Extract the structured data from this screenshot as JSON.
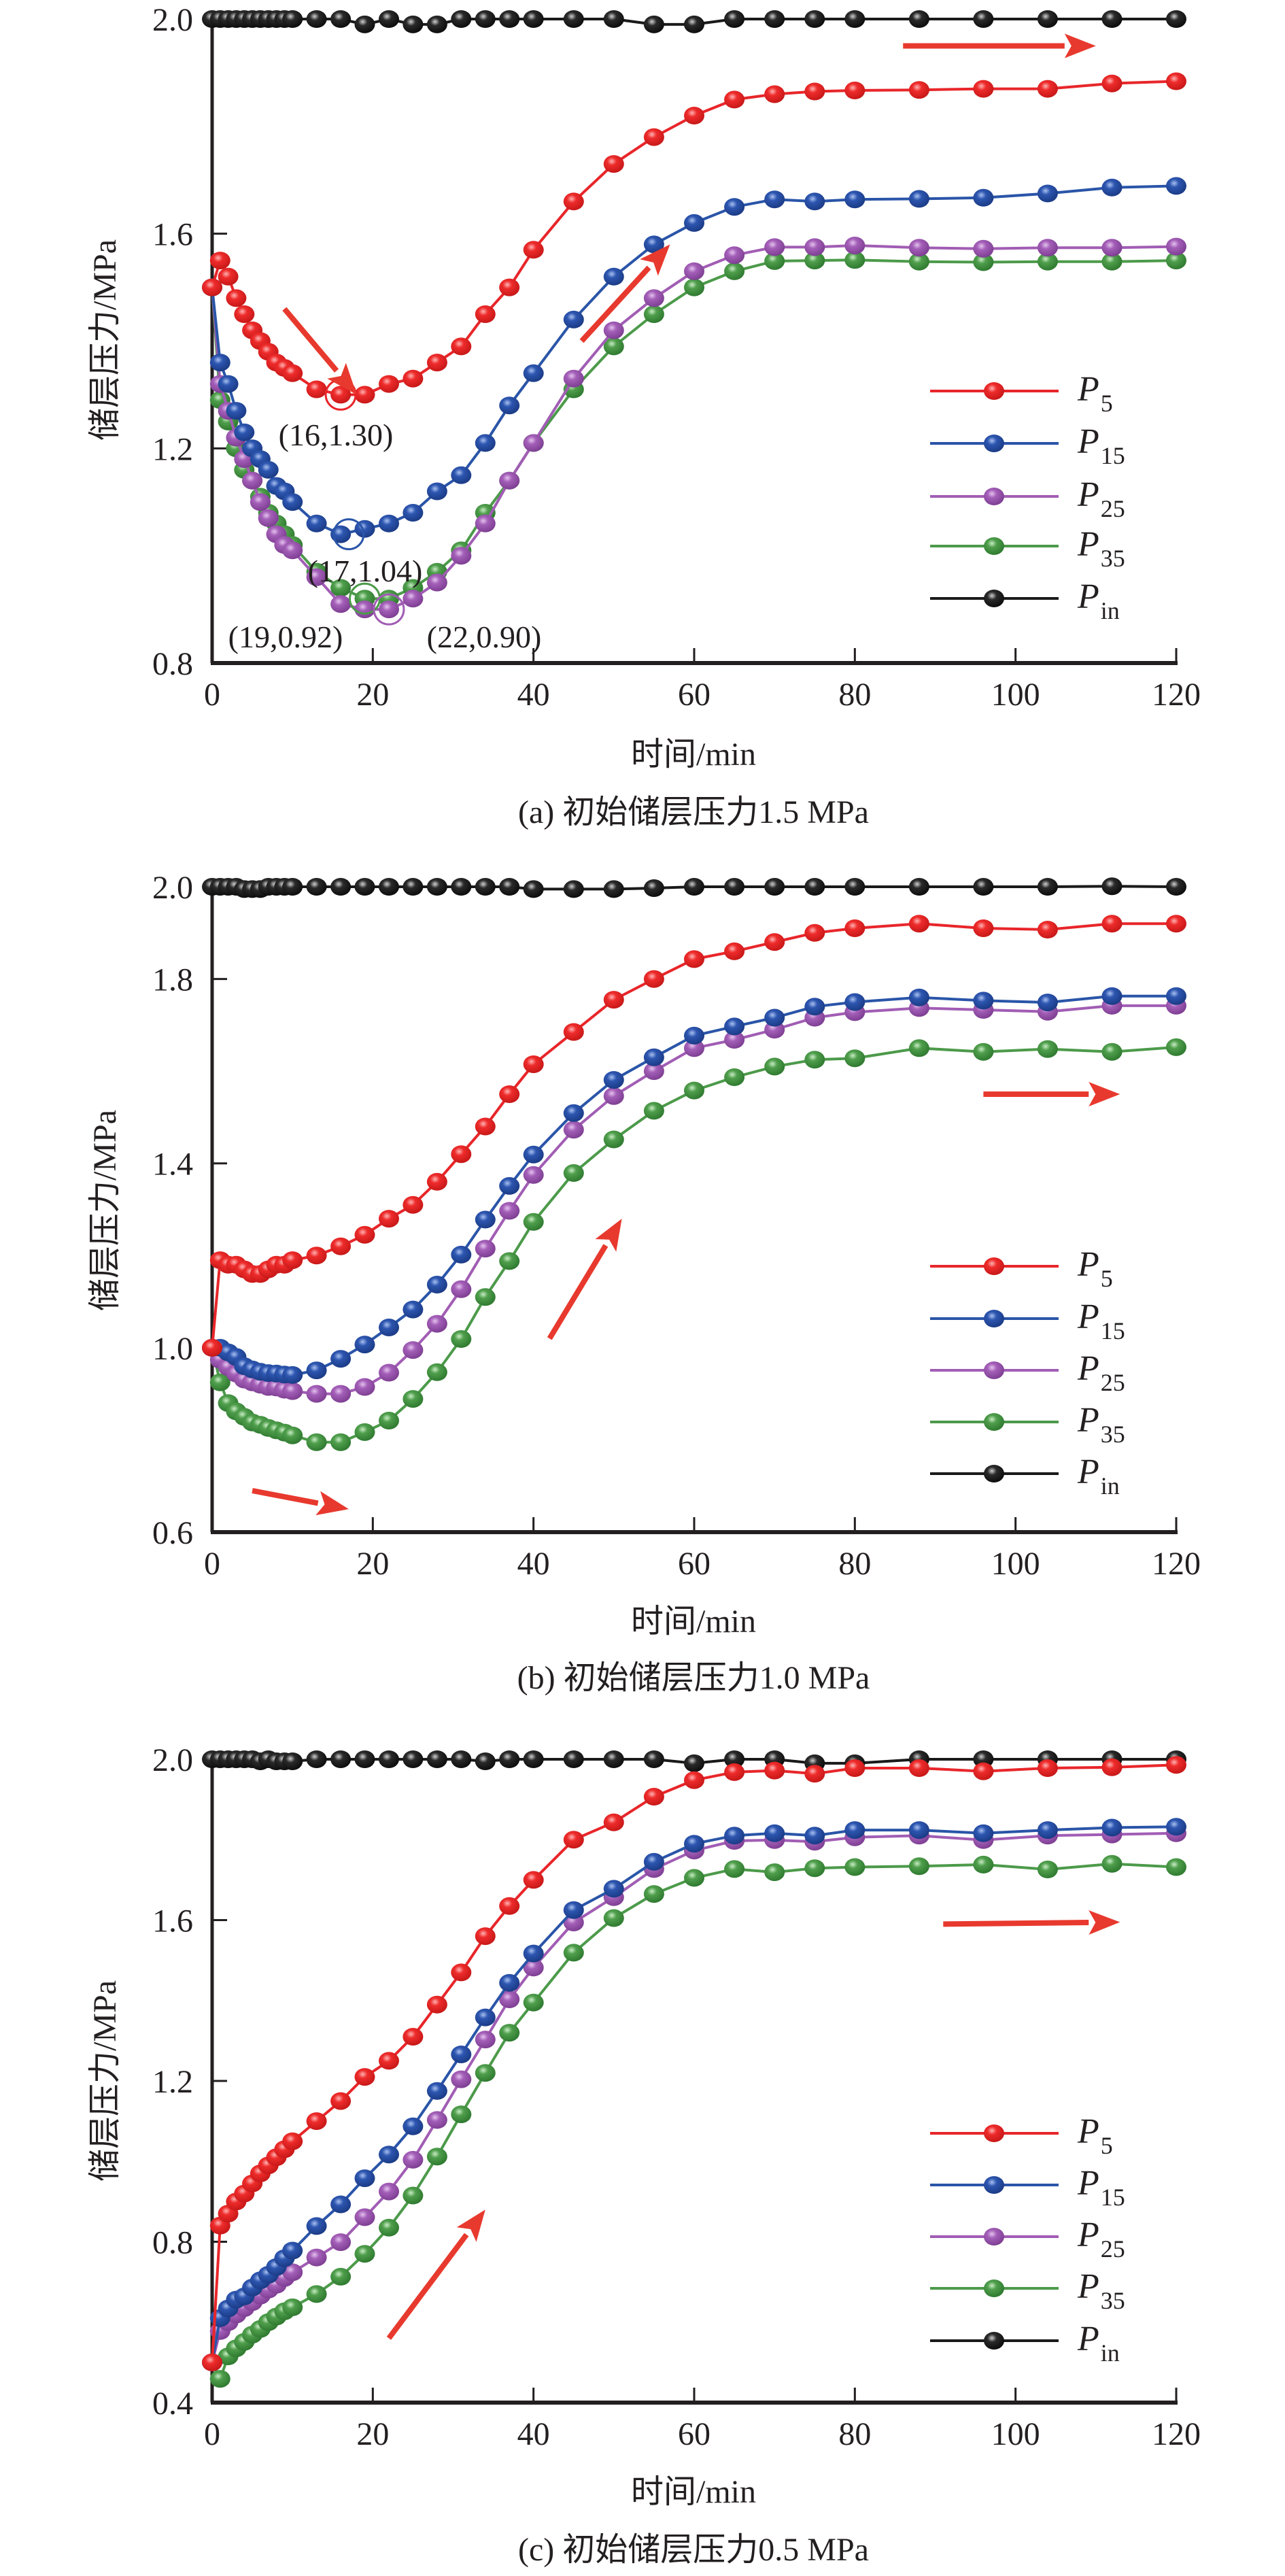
{
  "figure": {
    "colors": {
      "P5": "#e8262a",
      "P15": "#2a55a8",
      "P25": "#a15db4",
      "P35": "#4c9a4a",
      "Pin": "#1a1a1a",
      "arrow": "#e8392e",
      "axis": "#231f20"
    }
  },
  "chart_data": [
    {
      "id": "a",
      "type": "line",
      "title": "(a) 初始储层压力1.5 MPa",
      "xlabel": "时间/min",
      "ylabel": "储层压力/MPa",
      "xlim": [
        0,
        120
      ],
      "ylim": [
        0.8,
        2.0
      ],
      "xticks": [
        0,
        20,
        40,
        60,
        80,
        100,
        120
      ],
      "xtick_labels": [
        "0",
        "20",
        "40",
        "60",
        "80",
        "100",
        "120"
      ],
      "yticks": [
        0.8,
        1.2,
        1.6,
        2.0
      ],
      "ytick_labels": [
        "0.8",
        "1.2",
        "1.6",
        "2.0"
      ],
      "grid": false,
      "legend_position": "lower-right",
      "x": [
        0,
        1,
        2,
        3,
        4,
        5,
        6,
        7,
        8,
        9,
        10,
        13,
        16,
        19,
        22,
        25,
        28,
        31,
        34,
        37,
        40,
        45,
        50,
        55,
        60,
        65,
        70,
        75,
        80,
        88,
        96,
        104,
        112,
        120
      ],
      "series": [
        {
          "name": "P5",
          "label_main": "P",
          "label_sub": "5",
          "values": [
            1.5,
            1.55,
            1.52,
            1.48,
            1.45,
            1.42,
            1.4,
            1.38,
            1.36,
            1.35,
            1.34,
            1.31,
            1.3,
            1.3,
            1.32,
            1.33,
            1.36,
            1.39,
            1.45,
            1.5,
            1.57,
            1.66,
            1.73,
            1.78,
            1.82,
            1.85,
            1.86,
            1.865,
            1.867,
            1.868,
            1.87,
            1.87,
            1.88,
            1.884
          ]
        },
        {
          "name": "P15",
          "label_main": "P",
          "label_sub": "15",
          "values": [
            1.5,
            1.36,
            1.32,
            1.27,
            1.23,
            1.2,
            1.18,
            1.16,
            1.13,
            1.12,
            1.1,
            1.06,
            1.04,
            1.05,
            1.06,
            1.08,
            1.12,
            1.15,
            1.21,
            1.28,
            1.34,
            1.44,
            1.52,
            1.58,
            1.62,
            1.65,
            1.664,
            1.66,
            1.664,
            1.665,
            1.667,
            1.675,
            1.686,
            1.689
          ]
        },
        {
          "name": "P25",
          "label_main": "P",
          "label_sub": "25",
          "values": [
            1.5,
            1.32,
            1.27,
            1.22,
            1.18,
            1.14,
            1.1,
            1.07,
            1.04,
            1.02,
            1.01,
            0.96,
            0.91,
            0.9,
            0.9,
            0.92,
            0.95,
            1.0,
            1.06,
            1.14,
            1.21,
            1.33,
            1.42,
            1.48,
            1.53,
            1.56,
            1.575,
            1.575,
            1.578,
            1.574,
            1.572,
            1.574,
            1.574,
            1.576
          ]
        },
        {
          "name": "P35",
          "label_main": "P",
          "label_sub": "35",
          "values": [
            1.5,
            1.29,
            1.25,
            1.2,
            1.16,
            1.14,
            1.11,
            1.08,
            1.06,
            1.04,
            1.02,
            0.97,
            0.94,
            0.92,
            0.92,
            0.94,
            0.97,
            1.01,
            1.08,
            1.14,
            1.21,
            1.31,
            1.39,
            1.45,
            1.5,
            1.53,
            1.549,
            1.55,
            1.551,
            1.548,
            1.547,
            1.548,
            1.548,
            1.55
          ]
        },
        {
          "name": "Pin",
          "label_main": "P",
          "label_sub": "in",
          "values": [
            2.0,
            2.0,
            2.0,
            2.0,
            2.0,
            2.0,
            2.0,
            2.0,
            2.0,
            2.0,
            2.0,
            2.0,
            2.0,
            1.99,
            2.0,
            1.99,
            1.99,
            2.0,
            2.0,
            2.0,
            2.0,
            2.0,
            2.0,
            1.99,
            1.99,
            2.0,
            2.0,
            2.0,
            2.0,
            2.0,
            2.0,
            2.0,
            2.0,
            2.0
          ]
        }
      ],
      "annotations": [
        {
          "text": "(16,1.30)",
          "series": "P5",
          "x": 16,
          "y": 1.3
        },
        {
          "text": "(17,1.04)",
          "series": "P15",
          "x": 17,
          "y": 1.04
        },
        {
          "text": "(19,0.92)",
          "series": "P35",
          "x": 19,
          "y": 0.92
        },
        {
          "text": "(22,0.90)",
          "series": "P25",
          "x": 22,
          "y": 0.9
        }
      ],
      "arrows": [
        {
          "direction": "down-right",
          "from": [
            9,
            1.46
          ],
          "to": [
            18,
            1.3
          ]
        },
        {
          "direction": "up-right",
          "from": [
            46,
            1.4
          ],
          "to": [
            57,
            1.58
          ]
        },
        {
          "direction": "right",
          "from": [
            86,
            1.95
          ],
          "to": [
            110,
            1.95
          ]
        }
      ]
    },
    {
      "id": "b",
      "type": "line",
      "title": "(b) 初始储层压力1.0 MPa",
      "xlabel": "时间/min",
      "ylabel": "储层压力/MPa",
      "xlim": [
        0,
        120
      ],
      "ylim": [
        0.6,
        2.0
      ],
      "xticks": [
        0,
        20,
        40,
        60,
        80,
        100,
        120
      ],
      "xtick_labels": [
        "0",
        "20",
        "40",
        "60",
        "80",
        "100",
        "120"
      ],
      "yticks": [
        0.6,
        1.0,
        1.4,
        1.8,
        2.0
      ],
      "ytick_labels": [
        "0.6",
        "1.0",
        "1.4",
        "1.8",
        "2.0"
      ],
      "grid": false,
      "legend_position": "lower-right",
      "x": [
        0,
        1,
        2,
        3,
        4,
        5,
        6,
        7,
        8,
        9,
        10,
        13,
        16,
        19,
        22,
        25,
        28,
        31,
        34,
        37,
        40,
        45,
        50,
        55,
        60,
        65,
        70,
        75,
        80,
        88,
        96,
        104,
        112,
        120
      ],
      "series": [
        {
          "name": "P5",
          "label_main": "P",
          "label_sub": "5",
          "values": [
            1.0,
            1.19,
            1.18,
            1.18,
            1.17,
            1.16,
            1.16,
            1.17,
            1.18,
            1.18,
            1.19,
            1.2,
            1.22,
            1.245,
            1.28,
            1.31,
            1.36,
            1.42,
            1.48,
            1.55,
            1.615,
            1.685,
            1.755,
            1.8,
            1.843,
            1.86,
            1.88,
            1.9,
            1.91,
            1.92,
            1.91,
            1.907,
            1.92,
            1.92
          ]
        },
        {
          "name": "P15",
          "label_main": "P",
          "label_sub": "15",
          "values": [
            1.0,
            1.0,
            0.99,
            0.98,
            0.96,
            0.953,
            0.948,
            0.945,
            0.944,
            0.942,
            0.941,
            0.951,
            0.976,
            1.007,
            1.044,
            1.083,
            1.137,
            1.202,
            1.278,
            1.351,
            1.419,
            1.509,
            1.581,
            1.63,
            1.677,
            1.697,
            1.716,
            1.74,
            1.75,
            1.76,
            1.753,
            1.749,
            1.763,
            1.763
          ]
        },
        {
          "name": "P25",
          "label_main": "P",
          "label_sub": "25",
          "values": [
            1.0,
            0.974,
            0.958,
            0.944,
            0.931,
            0.925,
            0.92,
            0.915,
            0.914,
            0.909,
            0.906,
            0.9,
            0.9,
            0.915,
            0.946,
            0.995,
            1.052,
            1.127,
            1.215,
            1.297,
            1.375,
            1.473,
            1.546,
            1.6,
            1.65,
            1.668,
            1.69,
            1.716,
            1.728,
            1.737,
            1.733,
            1.729,
            1.742,
            1.742
          ]
        },
        {
          "name": "P35",
          "label_main": "P",
          "label_sub": "35",
          "values": [
            1.0,
            0.925,
            0.88,
            0.862,
            0.85,
            0.838,
            0.833,
            0.826,
            0.821,
            0.816,
            0.81,
            0.795,
            0.795,
            0.817,
            0.842,
            0.889,
            0.947,
            1.019,
            1.11,
            1.188,
            1.273,
            1.379,
            1.452,
            1.514,
            1.558,
            1.587,
            1.61,
            1.625,
            1.628,
            1.65,
            1.642,
            1.648,
            1.642,
            1.652
          ]
        },
        {
          "name": "Pin",
          "label_main": "P",
          "label_sub": "in",
          "values": [
            2.0,
            2.0,
            2.0,
            2.0,
            1.995,
            1.995,
            1.995,
            2.0,
            2.0,
            2.0,
            2.0,
            2.0,
            2.0,
            2.0,
            2.0,
            2.0,
            2.0,
            2.0,
            2.0,
            2.0,
            1.995,
            1.995,
            1.995,
            1.997,
            2.0,
            2.0,
            2.0,
            2.0,
            2.0,
            2.0,
            2.0,
            2.0,
            2.001,
            2.0
          ]
        }
      ],
      "annotations": [],
      "arrows": [
        {
          "direction": "down-right",
          "from": [
            5,
            0.69
          ],
          "to": [
            17,
            0.65
          ]
        },
        {
          "direction": "up-right",
          "from": [
            42,
            1.02
          ],
          "to": [
            51,
            1.28
          ]
        },
        {
          "direction": "right",
          "from": [
            96,
            1.55
          ],
          "to": [
            113,
            1.55
          ]
        }
      ]
    },
    {
      "id": "c",
      "type": "line",
      "title": "(c) 初始储层压力0.5 MPa",
      "xlabel": "时间/min",
      "ylabel": "储层压力/MPa",
      "xlim": [
        0,
        120
      ],
      "ylim": [
        0.4,
        2.0
      ],
      "xticks": [
        0,
        20,
        40,
        60,
        80,
        100,
        120
      ],
      "xtick_labels": [
        "0",
        "20",
        "40",
        "60",
        "80",
        "100",
        "120"
      ],
      "yticks": [
        0.4,
        0.8,
        1.2,
        1.6,
        2.0
      ],
      "ytick_labels": [
        "0.4",
        "0.8",
        "1.2",
        "1.6",
        "2.0"
      ],
      "grid": false,
      "legend_position": "lower-right",
      "x": [
        0,
        1,
        2,
        3,
        4,
        5,
        6,
        7,
        8,
        9,
        10,
        13,
        16,
        19,
        22,
        25,
        28,
        31,
        34,
        37,
        40,
        45,
        50,
        55,
        60,
        65,
        70,
        75,
        80,
        88,
        96,
        104,
        112,
        120
      ],
      "series": [
        {
          "name": "P5",
          "label_main": "P",
          "label_sub": "5",
          "values": [
            0.5,
            0.84,
            0.87,
            0.9,
            0.92,
            0.945,
            0.97,
            0.99,
            1.01,
            1.03,
            1.05,
            1.1,
            1.15,
            1.21,
            1.25,
            1.31,
            1.39,
            1.47,
            1.56,
            1.635,
            1.7,
            1.8,
            1.843,
            1.907,
            1.948,
            1.968,
            1.972,
            1.964,
            1.978,
            1.978,
            1.97,
            1.978,
            1.98,
            1.986
          ]
        },
        {
          "name": "P15",
          "label_main": "P",
          "label_sub": "15",
          "values": [
            0.5,
            0.61,
            0.634,
            0.656,
            0.664,
            0.686,
            0.704,
            0.718,
            0.737,
            0.759,
            0.778,
            0.839,
            0.893,
            0.958,
            1.017,
            1.087,
            1.175,
            1.266,
            1.358,
            1.444,
            1.517,
            1.625,
            1.678,
            1.745,
            1.79,
            1.81,
            1.816,
            1.81,
            1.824,
            1.824,
            1.816,
            1.824,
            1.83,
            1.832
          ]
        },
        {
          "name": "P25",
          "label_main": "P",
          "label_sub": "25",
          "values": [
            0.5,
            0.578,
            0.6,
            0.619,
            0.635,
            0.65,
            0.666,
            0.681,
            0.693,
            0.71,
            0.724,
            0.761,
            0.799,
            0.861,
            0.925,
            1.004,
            1.103,
            1.204,
            1.303,
            1.403,
            1.482,
            1.594,
            1.657,
            1.727,
            1.773,
            1.797,
            1.799,
            1.795,
            1.806,
            1.81,
            1.799,
            1.81,
            1.813,
            1.816
          ]
        },
        {
          "name": "P35",
          "label_main": "P",
          "label_sub": "35",
          "values": [
            0.5,
            0.459,
            0.515,
            0.535,
            0.551,
            0.569,
            0.583,
            0.6,
            0.614,
            0.627,
            0.637,
            0.67,
            0.713,
            0.77,
            0.835,
            0.915,
            1.012,
            1.117,
            1.22,
            1.32,
            1.395,
            1.519,
            1.605,
            1.665,
            1.705,
            1.727,
            1.719,
            1.729,
            1.732,
            1.734,
            1.738,
            1.726,
            1.74,
            1.732
          ]
        },
        {
          "name": "Pin",
          "label_main": "P",
          "label_sub": "in",
          "values": [
            2.0,
            2.0,
            2.0,
            2.0,
            2.0,
            2.0,
            1.995,
            2.0,
            1.995,
            1.995,
            1.995,
            2.0,
            2.0,
            2.0,
            2.0,
            2.0,
            2.0,
            2.0,
            1.995,
            2.0,
            2.0,
            2.0,
            2.0,
            2.0,
            1.99,
            2.0,
            2.0,
            1.99,
            1.99,
            2.0,
            2.0,
            2.0,
            2.0,
            2.0
          ]
        }
      ],
      "annotations": [],
      "arrows": [
        {
          "direction": "up-right",
          "from": [
            22,
            0.56
          ],
          "to": [
            34,
            0.88
          ]
        },
        {
          "direction": "right",
          "from": [
            91,
            1.59
          ],
          "to": [
            113,
            1.595
          ]
        }
      ]
    }
  ]
}
